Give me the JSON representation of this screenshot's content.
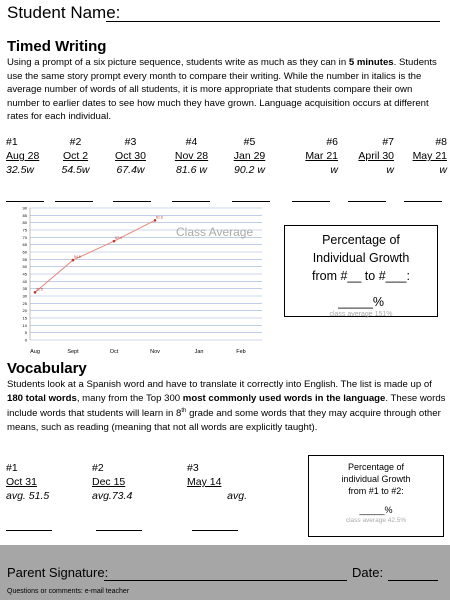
{
  "header": {
    "student_name_label": "Student Name:"
  },
  "timed_writing": {
    "heading": "Timed Writing",
    "paragraph": [
      "Using a prompt of a six picture sequence, students write as much as they can in ",
      "5 minutes",
      ". Students use the same story prompt every month to compare their writing. While the number in italics is the average number of words of all students, it is more appropriate that students compare their own number to earlier dates to see how much they have grown. Language acquisition occurs at different rates for each individual."
    ],
    "columns": [
      {
        "number": "#1",
        "date": "Aug 28",
        "average": "32.5w"
      },
      {
        "number": "#2",
        "date": "Oct 2",
        "average": "54.5w"
      },
      {
        "number": "#3",
        "date": "Oct 30",
        "average": "67.4w"
      },
      {
        "number": "#4",
        "date": "Nov 28",
        "average": "81.6 w"
      },
      {
        "number": "#5",
        "date": "Jan 29",
        "average": "90.2  w"
      },
      {
        "number": "#6",
        "date": "Mar 21",
        "average": "w"
      },
      {
        "number": "#7",
        "date": "April 30",
        "average": "w"
      },
      {
        "number": "#8",
        "date": "May 21",
        "average": "w"
      }
    ],
    "chart": {
      "type": "line",
      "categories": [
        "Aug",
        "Sept",
        "Oct",
        "Nov",
        "Jan",
        "Feb"
      ],
      "values": [
        32.5,
        54.5,
        67.4,
        81.6,
        null,
        null
      ],
      "color": "#e8877c",
      "ylim": [
        0,
        90
      ],
      "yticks": [
        0,
        5,
        10,
        15,
        20,
        25,
        30,
        35,
        40,
        45,
        50,
        55,
        60,
        65,
        70,
        75,
        80,
        85,
        90
      ],
      "grid": true,
      "annotation": "Class Average"
    },
    "growth_box": {
      "lines": [
        "Percentage of",
        "Individual Growth",
        "from   #__  to #___:"
      ],
      "blank": "_____%",
      "class_average": "class average 151%"
    }
  },
  "vocabulary": {
    "heading": "Vocabulary",
    "paragraph": [
      "Students look at a Spanish word and have to translate it correctly into English. The list is made up of ",
      "180 total words",
      ", many from the Top 300 ",
      "most commonly used words in the language",
      ".  These words include words that students will learn in 8",
      "th",
      " grade and some words that they may acquire through other means, such as reading (meaning that not all words are explicitly taught)."
    ],
    "columns": [
      {
        "number": "#1",
        "date": "Oct 31",
        "average": "avg. 51.5"
      },
      {
        "number": "#2",
        "date": "Dec 15",
        "average": "avg.73.4"
      },
      {
        "number": "#3",
        "date": "May 14",
        "average": "avg."
      }
    ],
    "growth_box": {
      "lines": [
        "Percentage of",
        "individual Growth",
        "from  #1  to  #2:"
      ],
      "blank": "_____%",
      "class_average": "class average 42.5%"
    }
  },
  "footer": {
    "signature_label": "Parent Signature:",
    "date_label": "Date:",
    "note": "Questions or comments: e-mail teacher"
  }
}
